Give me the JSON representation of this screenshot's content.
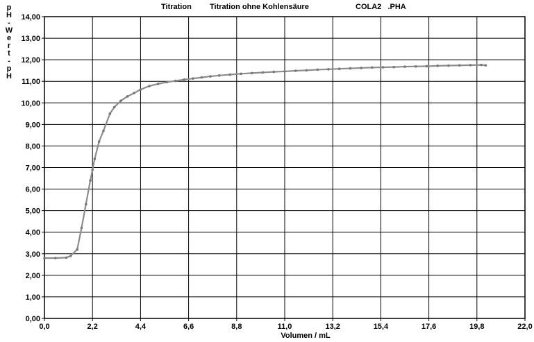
{
  "header": {
    "mode": "Titration",
    "description": "Titration ohne Kohlensäure",
    "file": "COLA2   .PHA"
  },
  "chart_data": {
    "type": "line",
    "xlabel": "Volumen / mL",
    "ylabel_chars": [
      "p",
      "H",
      "-",
      "W",
      "e",
      "r",
      "t",
      "-",
      "p",
      "H"
    ],
    "xlim": [
      0,
      22
    ],
    "ylim": [
      0,
      14
    ],
    "x_ticks": [
      "0,0",
      "2,2",
      "4,4",
      "6,6",
      "8,8",
      "11,0",
      "13,2",
      "15,4",
      "17,6",
      "19,8",
      "22,0"
    ],
    "y_ticks": [
      "0,00",
      "1,00",
      "2,00",
      "3,00",
      "4,00",
      "5,00",
      "6,00",
      "7,00",
      "8,00",
      "9,00",
      "10,00",
      "11,00",
      "12,00",
      "13,00",
      "14,00"
    ],
    "grid": true,
    "line_color": "#8c8c8c",
    "series": [
      {
        "x": [
          0.0,
          0.5,
          1.0,
          1.2,
          1.5,
          1.7,
          1.9,
          2.1,
          2.2,
          2.3,
          2.5,
          2.7,
          3.0,
          3.2,
          3.5,
          3.8,
          4.1,
          4.4,
          4.8,
          5.2,
          5.6,
          6.0,
          6.4,
          6.8,
          7.2,
          7.6,
          8.0,
          8.5,
          9.0,
          9.5,
          10.0,
          10.5,
          11.0,
          11.5,
          12.0,
          12.5,
          13.0,
          13.5,
          14.0,
          14.5,
          15.0,
          15.5,
          16.0,
          16.5,
          17.0,
          17.5,
          18.0,
          18.5,
          19.0,
          19.5,
          20.0,
          20.2
        ],
        "y": [
          2.8,
          2.8,
          2.82,
          2.9,
          3.2,
          4.2,
          5.3,
          6.4,
          6.9,
          7.4,
          8.2,
          8.7,
          9.5,
          9.8,
          10.1,
          10.3,
          10.45,
          10.62,
          10.78,
          10.88,
          10.96,
          11.02,
          11.08,
          11.13,
          11.18,
          11.23,
          11.27,
          11.31,
          11.35,
          11.38,
          11.41,
          11.44,
          11.46,
          11.49,
          11.51,
          11.54,
          11.56,
          11.58,
          11.6,
          11.62,
          11.64,
          11.65,
          11.66,
          11.68,
          11.69,
          11.7,
          11.72,
          11.73,
          11.74,
          11.75,
          11.76,
          11.74
        ]
      }
    ]
  }
}
